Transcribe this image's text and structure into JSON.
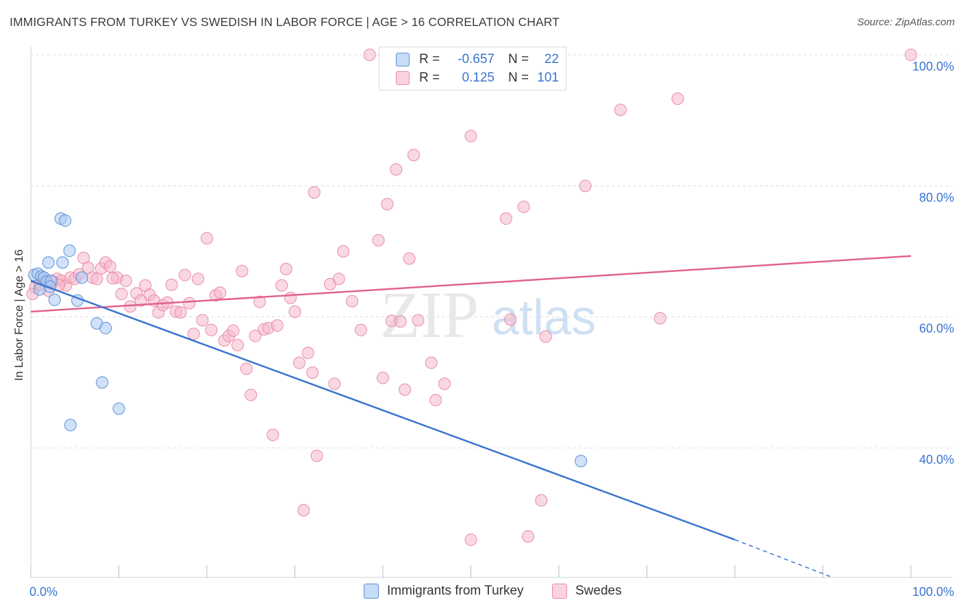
{
  "title": "IMMIGRANTS FROM TURKEY VS SWEDISH IN LABOR FORCE | AGE > 16 CORRELATION CHART",
  "source": "Source: ZipAtlas.com",
  "watermark": {
    "zip": "ZIP",
    "atlas": "atlas"
  },
  "legend": {
    "rows": [
      {
        "r_label": "R =",
        "r_value": "-0.657",
        "n_label": "N =",
        "n_value": "22",
        "color": "#a9c8f2",
        "stroke": "#5b8fd8"
      },
      {
        "r_label": "R =",
        "r_value": "0.125",
        "n_label": "N =",
        "n_value": "101",
        "color": "#f6b8cb",
        "stroke": "#e88aa8"
      }
    ]
  },
  "chart_data": {
    "type": "scatter",
    "title": "IMMIGRANTS FROM TURKEY VS SWEDISH IN LABOR FORCE | AGE > 16 CORRELATION CHART",
    "xlabel": "",
    "ylabel": "In Labor Force | Age > 16",
    "xlim": [
      0,
      100
    ],
    "ylim": [
      20,
      102
    ],
    "x_tick_labels": [
      {
        "value": 0,
        "label": "0.0%"
      },
      {
        "value": 100,
        "label": "100.0%"
      }
    ],
    "y_tick_labels": [
      {
        "value": 100,
        "label": "100.0%"
      },
      {
        "value": 80,
        "label": "80.0%"
      },
      {
        "value": 60,
        "label": "60.0%"
      },
      {
        "value": 40,
        "label": "40.0%"
      }
    ],
    "series": [
      {
        "name": "Immigrants from Turkey",
        "color": "#a9c8f2",
        "stroke": "#5b8fd8",
        "line_color": "#3a74d0",
        "trend": {
          "x0": 0,
          "y0": 65.5,
          "x1": 80,
          "y1": 26.0,
          "dash_to_x": 91,
          "dash_to_y": 20.3
        },
        "points": [
          [
            0.4,
            66.4
          ],
          [
            0.8,
            66.6
          ],
          [
            1.2,
            66.2
          ],
          [
            1.5,
            66.0
          ],
          [
            1.8,
            65.4
          ],
          [
            2.0,
            68.3
          ],
          [
            2.3,
            65.5
          ],
          [
            2.7,
            62.6
          ],
          [
            3.4,
            75.0
          ],
          [
            3.6,
            68.3
          ],
          [
            3.9,
            74.7
          ],
          [
            4.4,
            70.1
          ],
          [
            5.3,
            62.5
          ],
          [
            5.8,
            66.0
          ],
          [
            7.5,
            59.0
          ],
          [
            8.1,
            50.0
          ],
          [
            8.5,
            58.3
          ],
          [
            10.0,
            46.0
          ],
          [
            4.5,
            43.5
          ],
          [
            62.5,
            38.0
          ],
          [
            1.0,
            64.2
          ],
          [
            2.2,
            64.6
          ]
        ]
      },
      {
        "name": "Swedes",
        "color": "#f6b8cb",
        "stroke": "#e88aa8",
        "line_color": "#e0628e",
        "trend": {
          "x0": 0,
          "y0": 60.8,
          "x1": 100,
          "y1": 69.3
        },
        "points": [
          [
            0.5,
            64.5
          ],
          [
            1.0,
            65.0
          ],
          [
            1.5,
            65.6
          ],
          [
            2.0,
            64.0
          ],
          [
            2.5,
            65.4
          ],
          [
            3.0,
            65.8
          ],
          [
            3.5,
            65.5
          ],
          [
            4.0,
            64.8
          ],
          [
            4.5,
            66.0
          ],
          [
            5.0,
            65.8
          ],
          [
            5.5,
            66.5
          ],
          [
            6.0,
            69.0
          ],
          [
            6.5,
            67.5
          ],
          [
            7.0,
            66.0
          ],
          [
            7.5,
            65.8
          ],
          [
            8.0,
            67.4
          ],
          [
            8.5,
            68.3
          ],
          [
            9.0,
            67.7
          ],
          [
            9.8,
            66.0
          ],
          [
            10.3,
            63.5
          ],
          [
            10.8,
            65.5
          ],
          [
            11.3,
            61.6
          ],
          [
            12.0,
            63.6
          ],
          [
            12.5,
            62.5
          ],
          [
            13.0,
            64.8
          ],
          [
            13.5,
            63.4
          ],
          [
            14.0,
            62.5
          ],
          [
            14.5,
            60.7
          ],
          [
            15.0,
            61.8
          ],
          [
            15.5,
            62.2
          ],
          [
            16.0,
            64.9
          ],
          [
            16.5,
            60.8
          ],
          [
            17.0,
            60.7
          ],
          [
            17.5,
            66.4
          ],
          [
            18.0,
            62.1
          ],
          [
            18.5,
            57.4
          ],
          [
            19.0,
            65.8
          ],
          [
            19.5,
            59.5
          ],
          [
            20.0,
            72.0
          ],
          [
            20.5,
            58.0
          ],
          [
            21.0,
            63.3
          ],
          [
            21.5,
            63.7
          ],
          [
            22.0,
            56.4
          ],
          [
            22.5,
            57.1
          ],
          [
            23.0,
            57.9
          ],
          [
            23.5,
            55.7
          ],
          [
            24.0,
            67.0
          ],
          [
            24.5,
            52.1
          ],
          [
            25.0,
            48.1
          ],
          [
            25.5,
            57.1
          ],
          [
            26.0,
            62.3
          ],
          [
            26.5,
            58.1
          ],
          [
            27.0,
            58.3
          ],
          [
            27.5,
            42.0
          ],
          [
            28.0,
            58.7
          ],
          [
            28.5,
            64.8
          ],
          [
            29.0,
            67.3
          ],
          [
            29.5,
            62.9
          ],
          [
            30.0,
            60.8
          ],
          [
            30.5,
            53.0
          ],
          [
            31.0,
            30.5
          ],
          [
            31.5,
            54.5
          ],
          [
            32.0,
            51.5
          ],
          [
            32.5,
            38.8
          ],
          [
            32.2,
            79.0
          ],
          [
            34.0,
            65.0
          ],
          [
            34.5,
            49.8
          ],
          [
            35.0,
            65.8
          ],
          [
            35.5,
            70.0
          ],
          [
            36.5,
            62.4
          ],
          [
            37.5,
            58.0
          ],
          [
            38.5,
            100.0
          ],
          [
            39.5,
            71.7
          ],
          [
            40.0,
            50.7
          ],
          [
            40.5,
            77.2
          ],
          [
            41.0,
            59.4
          ],
          [
            41.5,
            82.5
          ],
          [
            42.0,
            59.3
          ],
          [
            42.5,
            48.9
          ],
          [
            43.0,
            68.9
          ],
          [
            43.5,
            84.7
          ],
          [
            44.0,
            59.5
          ],
          [
            45.5,
            53.0
          ],
          [
            46.0,
            47.3
          ],
          [
            47.0,
            49.8
          ],
          [
            50.0,
            87.6
          ],
          [
            50.0,
            26.0
          ],
          [
            54.0,
            75.0
          ],
          [
            54.5,
            59.6
          ],
          [
            56.0,
            76.8
          ],
          [
            56.5,
            26.5
          ],
          [
            58.0,
            32.0
          ],
          [
            58.5,
            57.0
          ],
          [
            63.0,
            80.0
          ],
          [
            67.0,
            91.6
          ],
          [
            71.5,
            59.8
          ],
          [
            73.5,
            93.3
          ],
          [
            100.0,
            100.0
          ],
          [
            0.2,
            63.5
          ],
          [
            3.2,
            64.9
          ],
          [
            9.3,
            65.9
          ]
        ]
      }
    ]
  },
  "bottom_legend": [
    "Immigrants from Turkey",
    "Swedes"
  ]
}
